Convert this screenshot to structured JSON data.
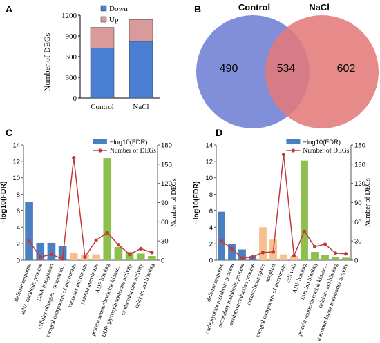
{
  "panels": {
    "A": "A",
    "B": "B",
    "C": "C",
    "D": "D"
  },
  "chart_data": [
    {
      "panel": "A",
      "type": "bar",
      "stacked": true,
      "categories": [
        "Control",
        "NaCl"
      ],
      "series": [
        {
          "name": "Down",
          "values": [
            724,
            821
          ],
          "color": "#4a7fd4"
        },
        {
          "name": "Up",
          "values": [
            300,
            315
          ],
          "color": "#d99a9a"
        }
      ],
      "ylabel": "Number of DEGs",
      "ylim": [
        0,
        1200
      ],
      "yticks": [
        "0",
        "300",
        "600",
        "900",
        "1200"
      ],
      "legend": "top-right",
      "grid": false
    },
    {
      "panel": "B",
      "type": "venn",
      "sets": [
        {
          "name": "Control",
          "only": "490",
          "color": "#6f7fd6"
        },
        {
          "name": "NaCl",
          "only": "602",
          "color": "#e37a7a"
        }
      ],
      "intersection": "534"
    },
    {
      "panel": "C",
      "type": "bar",
      "categories": [
        "defense response",
        "RNA catabolic process",
        "DNA integration",
        "cellular nitrogen compound...",
        "integral component of membrane",
        "vacuolar membrane",
        "plasma membrane",
        "ADP binding",
        "protein serine/threonine kinase...",
        "UDP-glycosyltransferase activity",
        "oxidoreductase activity",
        "calcium ion binding"
      ],
      "bar_groups": [
        "BP",
        "BP",
        "BP",
        "BP",
        "CC",
        "CC",
        "CC",
        "MF",
        "MF",
        "MF",
        "MF",
        "MF"
      ],
      "series": [
        {
          "name": "−log10(FDR)",
          "axis": "left",
          "values": [
            7.1,
            2.1,
            2.1,
            1.7,
            0.85,
            0.6,
            0.7,
            12.4,
            1.6,
            1.0,
            0.8,
            0.5
          ]
        },
        {
          "name": "Number of DEGs",
          "axis": "right",
          "values": [
            30,
            5,
            9,
            2,
            160,
            5,
            31,
            43,
            24,
            9,
            18,
            12
          ]
        }
      ],
      "ylabel": "−log10(FDR)",
      "y2label": "Number of DEGs",
      "ylim": [
        0,
        14
      ],
      "y2lim": [
        0,
        180
      ],
      "yticks": [
        "0",
        "2",
        "4",
        "6",
        "8",
        "10",
        "12",
        "14"
      ],
      "y2ticks": [
        "0",
        "30",
        "60",
        "90",
        "120",
        "150",
        "180"
      ],
      "legend": "top-right"
    },
    {
      "panel": "D",
      "type": "bar",
      "categories": [
        "defense response",
        "carbohydrate metabolic process",
        "secondary metabolic process",
        "oxidation-reduction process",
        "extracellular space",
        "apoplast",
        "integral component of membrane",
        "cell wall",
        "ADP binding",
        "iron ion binding",
        "protein serine/threonine kinase...",
        "calcium ion binding",
        "transmembrane transporter activity"
      ],
      "bar_groups": [
        "BP",
        "BP",
        "BP",
        "BP",
        "CC",
        "CC",
        "CC",
        "CC",
        "MF",
        "MF",
        "MF",
        "MF",
        "MF"
      ],
      "series": [
        {
          "name": "−log10(FDR)",
          "axis": "left",
          "values": [
            5.9,
            2.0,
            1.3,
            0.5,
            4.0,
            2.5,
            0.7,
            0.5,
            12.1,
            1.0,
            0.6,
            0.4,
            0.3
          ]
        },
        {
          "name": "Number of DEGs",
          "axis": "right",
          "values": [
            30,
            18,
            3,
            5,
            12,
            13,
            165,
            7,
            45,
            21,
            25,
            11,
            10
          ]
        }
      ],
      "ylabel": "−log10(FDR)",
      "y2label": "Number of DEGs",
      "ylim": [
        0,
        14
      ],
      "y2lim": [
        0,
        180
      ],
      "yticks": [
        "0",
        "2",
        "4",
        "6",
        "8",
        "10",
        "12",
        "14"
      ],
      "y2ticks": [
        "0",
        "30",
        "60",
        "90",
        "120",
        "150",
        "180"
      ],
      "legend": "top-right"
    }
  ],
  "colors": {
    "BP": "#4a7fc1",
    "CC": "#f6bf8f",
    "MF": "#8dbf4e",
    "line": "#c0393c"
  }
}
